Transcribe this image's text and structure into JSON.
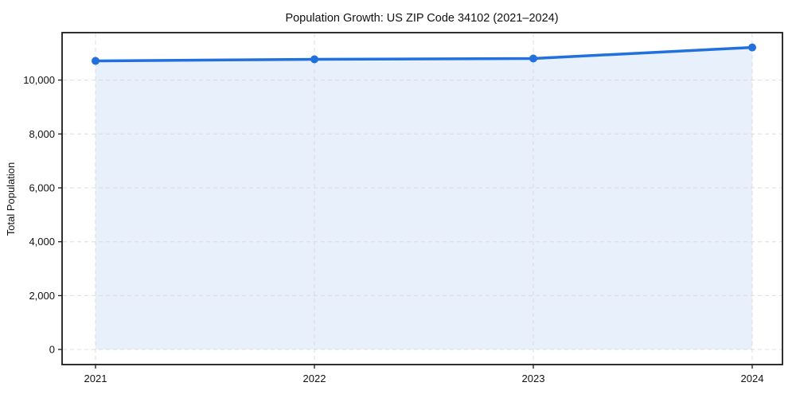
{
  "chart_data": {
    "type": "area",
    "title": "Population Growth: US ZIP Code 34102 (2021–2024)",
    "xlabel": "",
    "ylabel": "Total Population",
    "categories": [
      "2021",
      "2022",
      "2023",
      "2024"
    ],
    "series": [
      {
        "name": "Total Population",
        "values": [
          10710,
          10770,
          10800,
          11210
        ]
      }
    ],
    "ylim": [
      -560,
      11760
    ],
    "y_ticks": {
      "values": [
        0,
        2000,
        4000,
        6000,
        8000,
        10000
      ],
      "labels": [
        "0",
        "2,000",
        "4,000",
        "6,000",
        "8,000",
        "10,000"
      ]
    },
    "grid": true,
    "legend": "none",
    "colors": {
      "line": "#2170dd",
      "marker": "#2170dd",
      "fill": "#e8f0fc",
      "gridline": "#dcdcdc",
      "spine": "#1a1a1a",
      "tick_text": "#111111",
      "background": "#ffffff"
    },
    "fill_baseline": 0
  }
}
